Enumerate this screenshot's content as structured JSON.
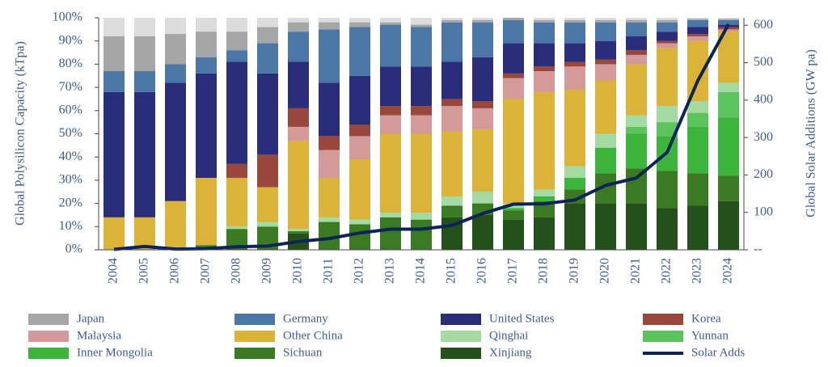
{
  "chart_data": {
    "type": "bar",
    "stacked": true,
    "y_label": "Global Polysilicon Capacity (kTpa)",
    "y2_label": "Global Solar Additions (GW pa)",
    "categories": [
      "2004",
      "2005",
      "2006",
      "2007",
      "2008",
      "2009",
      "2010",
      "2011",
      "2012",
      "2013",
      "2014",
      "2015",
      "2016",
      "2017",
      "2018",
      "2019",
      "2020",
      "2021",
      "2022",
      "2023",
      "2024"
    ],
    "ylim": [
      0,
      100
    ],
    "yticks": [
      {
        "value": 0,
        "label": "0%"
      },
      {
        "value": 10,
        "label": "10%"
      },
      {
        "value": 20,
        "label": "20%"
      },
      {
        "value": 30,
        "label": "30%"
      },
      {
        "value": 40,
        "label": "40%"
      },
      {
        "value": 50,
        "label": "50%"
      },
      {
        "value": 60,
        "label": "60%"
      },
      {
        "value": 70,
        "label": "70%"
      },
      {
        "value": 80,
        "label": "80%"
      },
      {
        "value": 90,
        "label": "90%"
      },
      {
        "value": 100,
        "label": "100%"
      }
    ],
    "y2lim": [
      0,
      620
    ],
    "y2ticks": [
      {
        "value": 0,
        "label": "--"
      },
      100,
      200,
      300,
      400,
      500,
      600
    ],
    "series": [
      {
        "name": "Japan",
        "color": "#a6a6a6",
        "values": [
          15,
          15,
          13,
          11,
          8,
          7,
          4,
          3,
          2,
          1,
          1,
          1,
          1,
          1,
          1,
          1,
          1,
          1,
          1,
          0.5,
          0.5
        ]
      },
      {
        "name": "Germany",
        "color": "#4a77a6",
        "values": [
          9,
          9,
          8,
          7,
          5,
          13,
          13,
          23,
          21,
          18,
          17,
          17,
          15,
          10,
          9,
          9,
          8,
          6,
          4,
          3,
          2
        ]
      },
      {
        "name": "United States",
        "color": "#2a2e7a",
        "values": [
          54,
          54,
          51,
          45,
          44,
          35,
          20,
          23,
          21,
          17,
          17,
          16,
          19,
          13,
          10,
          8,
          8,
          6,
          4,
          3,
          1
        ]
      },
      {
        "name": "Korea",
        "color": "#99473d",
        "values": [
          0,
          0,
          0,
          0,
          6,
          14,
          8,
          6,
          5,
          4,
          4,
          3,
          3,
          2,
          2,
          2,
          2,
          2,
          1,
          1,
          1
        ]
      },
      {
        "name": "Malaysia",
        "color": "#d49a9a",
        "values": [
          0,
          0,
          0,
          0,
          0,
          0,
          6,
          12,
          10,
          8,
          8,
          11,
          9,
          9,
          9,
          10,
          7,
          4,
          2,
          2,
          1
        ]
      },
      {
        "name": "Other China",
        "color": "#dbb338",
        "values": [
          14,
          14,
          21,
          29,
          21,
          15,
          38,
          17,
          26,
          34,
          34,
          28,
          27,
          45,
          42,
          33,
          23,
          22,
          25,
          26,
          22
        ]
      },
      {
        "name": "Qinghai",
        "color": "#a3dba3",
        "values": [
          0,
          0,
          0,
          0,
          1,
          2,
          1,
          2,
          2,
          2,
          3,
          4,
          5,
          2,
          3,
          5,
          6,
          5,
          7,
          5,
          4
        ]
      },
      {
        "name": "Yunnan",
        "color": "#5cc45c",
        "values": [
          0,
          0,
          0,
          0,
          0,
          0,
          0,
          0,
          0,
          0,
          0,
          0,
          0,
          0,
          0,
          0,
          0,
          3,
          6,
          6,
          11
        ]
      },
      {
        "name": "Inner Mongolia",
        "color": "#3cb53c",
        "values": [
          0,
          0,
          0,
          0,
          0,
          0,
          0,
          0,
          0,
          0,
          0,
          0,
          0,
          1,
          2,
          5,
          11,
          15,
          15,
          20,
          25
        ]
      },
      {
        "name": "Sichuan",
        "color": "#3a7a22",
        "values": [
          0,
          0,
          0,
          2,
          9,
          10,
          1,
          12,
          11,
          14,
          13,
          5,
          5,
          4,
          7,
          6,
          13,
          15,
          16,
          14,
          11
        ]
      },
      {
        "name": "Xinjiang",
        "color": "#23501b",
        "values": [
          0,
          0,
          0,
          0,
          0,
          0,
          7,
          0,
          0,
          0,
          0,
          14,
          15,
          13,
          14,
          20,
          20,
          20,
          18,
          19,
          21
        ]
      },
      {
        "name": "Solar Adds",
        "color": "#0d2456",
        "type": "line",
        "axis": "y2",
        "values": [
          1,
          9,
          2,
          3,
          8,
          10,
          22,
          30,
          45,
          55,
          55,
          65,
          97,
          122,
          123,
          133,
          172,
          192,
          260,
          452,
          603
        ]
      }
    ]
  }
}
